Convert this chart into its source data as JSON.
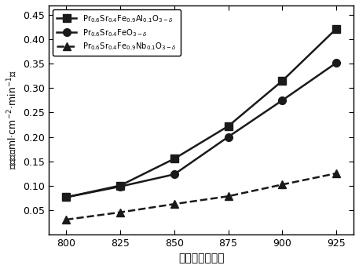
{
  "x": [
    800,
    825,
    850,
    875,
    900,
    925
  ],
  "series": [
    {
      "label": "Pr$_{0.6}$Sr$_{0.4}$Fe$_{0.9}$Al$_{0.1}$O$_{3-\\delta}$",
      "y": [
        0.076,
        0.1,
        0.155,
        0.222,
        0.315,
        0.422
      ],
      "marker": "s",
      "linestyle": "-",
      "color": "#1a1a1a"
    },
    {
      "label": "Pr$_{0.6}$Sr$_{0.4}$FeO$_{3-\\delta}$",
      "y": [
        0.076,
        0.098,
        0.123,
        0.2,
        0.275,
        0.352
      ],
      "marker": "o",
      "linestyle": "-",
      "color": "#1a1a1a"
    },
    {
      "label": "Pr$_{0.6}$Sr$_{0.4}$Fe$_{0.9}$Nb$_{0.1}$O$_{3-\\delta}$",
      "y": [
        0.03,
        0.045,
        0.062,
        0.078,
        0.102,
        0.125
      ],
      "marker": "^",
      "linestyle": "--",
      "color": "#1a1a1a"
    }
  ],
  "xlabel": "温度（攝氏度）",
  "ylabel": "透氧量（ml·cm$^{-2}$·min$^{-1}$）",
  "xlim": [
    792,
    933
  ],
  "ylim": [
    0.0,
    0.47
  ],
  "yticks": [
    0.05,
    0.1,
    0.15,
    0.2,
    0.25,
    0.3,
    0.35,
    0.4,
    0.45
  ],
  "xticks": [
    800,
    825,
    850,
    875,
    900,
    925
  ],
  "background_color": "#ffffff",
  "markersize": 7,
  "linewidth": 1.8
}
